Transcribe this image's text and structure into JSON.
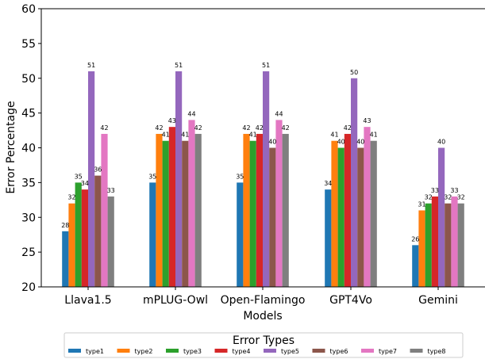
{
  "chart_data": {
    "type": "bar",
    "title": "",
    "xlabel": "Models",
    "ylabel": "Error Percentage",
    "ylim": [
      20,
      60
    ],
    "yticks": [
      20,
      25,
      30,
      35,
      40,
      45,
      50,
      55,
      60
    ],
    "grid": false,
    "categories": [
      "Llava1.5",
      "mPLUG-Owl",
      "Open-Flamingo",
      "GPT4Vo",
      "Gemini"
    ],
    "legend": {
      "title": "Error Types",
      "placement": "bottom-center"
    },
    "series": [
      {
        "name": "type1",
        "color": "#1f77b4",
        "values": [
          28,
          35,
          35,
          34,
          26
        ]
      },
      {
        "name": "type2",
        "color": "#ff7f0e",
        "values": [
          32,
          42,
          42,
          41,
          31
        ]
      },
      {
        "name": "type3",
        "color": "#2ca02c",
        "values": [
          35,
          41,
          41,
          40,
          32
        ]
      },
      {
        "name": "type4",
        "color": "#d62728",
        "values": [
          34,
          43,
          42,
          42,
          33
        ]
      },
      {
        "name": "type5",
        "color": "#9467bd",
        "values": [
          51,
          51,
          51,
          50,
          40
        ]
      },
      {
        "name": "type6",
        "color": "#8c564b",
        "values": [
          36,
          41,
          40,
          40,
          32
        ]
      },
      {
        "name": "type7",
        "color": "#e377c2",
        "values": [
          42,
          44,
          44,
          43,
          33
        ]
      },
      {
        "name": "type8",
        "color": "#7f7f7f",
        "values": [
          33,
          42,
          42,
          41,
          32
        ]
      }
    ]
  }
}
